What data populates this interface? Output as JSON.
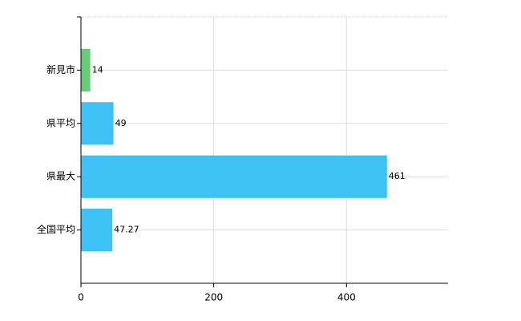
{
  "chart_data": {
    "type": "bar",
    "orientation": "horizontal",
    "categories": [
      "新見市",
      "県平均",
      "県最大",
      "全国平均"
    ],
    "values": [
      14,
      49,
      461,
      47.27
    ],
    "colors": [
      "#66cc77",
      "#3ec1f5",
      "#3ec1f5",
      "#3ec1f5"
    ],
    "xlim": [
      0,
      553
    ],
    "xticks": [
      0,
      200,
      400
    ],
    "grid": true
  }
}
